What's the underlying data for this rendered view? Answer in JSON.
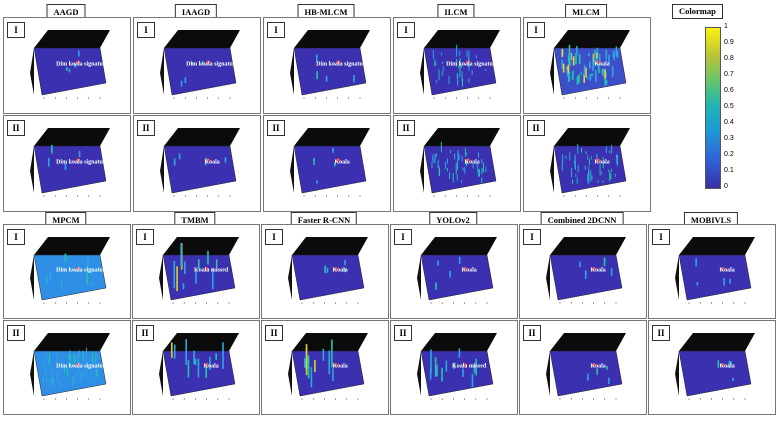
{
  "colormap": {
    "title": "Colormap",
    "ticks": [
      "1",
      "0.9",
      "0.8",
      "0.7",
      "0.6",
      "0.5",
      "0.4",
      "0.3",
      "0.2",
      "0.1",
      "0"
    ]
  },
  "rows": [
    {
      "methods": [
        {
          "name": "AAGD",
          "panels": [
            {
              "tag": "I",
              "label": "Dim koala signature",
              "style": "clean"
            },
            {
              "tag": "II",
              "label": "Dim koala signature",
              "style": "clean"
            }
          ]
        },
        {
          "name": "IAAGD",
          "panels": [
            {
              "tag": "I",
              "label": "Dim koala signature",
              "style": "clean"
            },
            {
              "tag": "II",
              "label": "Koala",
              "style": "clean"
            }
          ]
        },
        {
          "name": "HB-MLCM",
          "panels": [
            {
              "tag": "I",
              "label": "Dim koala signature",
              "style": "clean"
            },
            {
              "tag": "II",
              "label": "Koala",
              "style": "clean"
            }
          ]
        },
        {
          "name": "ILCM",
          "panels": [
            {
              "tag": "I",
              "label": "Dim koala signature",
              "style": "speckle"
            },
            {
              "tag": "II",
              "label": "Koala",
              "style": "noisy"
            }
          ]
        },
        {
          "name": "MLCM",
          "panels": [
            {
              "tag": "I",
              "label": "Koala",
              "style": "rough"
            },
            {
              "tag": "II",
              "label": "Koala",
              "style": "noisy"
            }
          ]
        }
      ]
    },
    {
      "methods": [
        {
          "name": "MPCM",
          "panels": [
            {
              "tag": "I",
              "label": "Dim koala signature",
              "style": "flat"
            },
            {
              "tag": "II",
              "label": "Dim koala signature",
              "style": "flatnoisy"
            }
          ]
        },
        {
          "name": "TMBM",
          "panels": [
            {
              "tag": "I",
              "label": "Koala missed",
              "style": "spikes"
            },
            {
              "tag": "II",
              "label": "Koala",
              "style": "spikes"
            }
          ]
        },
        {
          "name": "Faster R-CNN",
          "panels": [
            {
              "tag": "I",
              "label": "Koala",
              "style": "clean"
            },
            {
              "tag": "II",
              "label": "Koala",
              "style": "spikes"
            }
          ]
        },
        {
          "name": "YOLOv2",
          "panels": [
            {
              "tag": "I",
              "label": "Koala",
              "style": "clean"
            },
            {
              "tag": "II",
              "label": "Koala missed",
              "style": "spikes"
            }
          ]
        },
        {
          "name": "Combined 2DCNN",
          "panels": [
            {
              "tag": "I",
              "label": "Koala",
              "style": "clean"
            },
            {
              "tag": "II",
              "label": "Koala",
              "style": "clean"
            }
          ]
        },
        {
          "name": "MOBIVLS",
          "panels": [
            {
              "tag": "I",
              "label": "Koala",
              "style": "clean"
            },
            {
              "tag": "II",
              "label": "Koala",
              "style": "clean"
            }
          ]
        }
      ]
    }
  ]
}
